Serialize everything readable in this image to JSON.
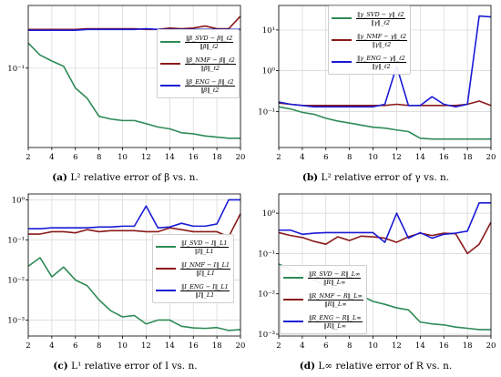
{
  "colors": {
    "svd": "#2e8b57",
    "nmf": "#8b1a1a",
    "eng": "#1a1ad6",
    "grid": "#d4d4d4"
  },
  "panels": [
    {
      "id": "a",
      "caption": {
        "tag": "(a)",
        "text": "L² relative error of β vs. n."
      },
      "legend": [
        {
          "num": "‖β_SVD − β‖_ℓ2",
          "den": "‖β‖_ℓ2",
          "color": "svd"
        },
        {
          "num": "‖β_NMF − β‖_ℓ2",
          "den": "‖β‖_ℓ2",
          "color": "nmf"
        },
        {
          "num": "‖β_ENG − β‖_ℓ2",
          "den": "‖β‖_ℓ2",
          "color": "eng"
        }
      ]
    },
    {
      "id": "b",
      "caption": {
        "tag": "(b)",
        "text": "L² relative error of γ vs. n."
      },
      "legend": [
        {
          "num": "‖γ_SVD − γ‖_ℓ2",
          "den": "‖γ‖_ℓ2",
          "color": "svd"
        },
        {
          "num": "‖γ_NMF − γ‖_ℓ2",
          "den": "‖γ‖_ℓ2",
          "color": "nmf"
        },
        {
          "num": "‖γ_ENG − γ‖_ℓ2",
          "den": "‖γ‖_ℓ2",
          "color": "eng"
        }
      ]
    },
    {
      "id": "c",
      "caption": {
        "tag": "(c)",
        "text": "L¹ relative error of I vs. n."
      },
      "legend": [
        {
          "num": "‖I_SVD − I‖_L1",
          "den": "‖I‖_L1",
          "color": "svd"
        },
        {
          "num": "‖I_NMF − I‖_L1",
          "den": "‖I‖_L1",
          "color": "nmf"
        },
        {
          "num": "‖I_ENG − I‖_L1",
          "den": "‖I‖_L1",
          "color": "eng"
        }
      ]
    },
    {
      "id": "d",
      "caption": {
        "tag": "(d)",
        "text": "L∞ relative error of R vs. n."
      },
      "legend": [
        {
          "num": "‖R_SVD − R‖_L∞",
          "den": "‖R‖_L∞",
          "color": "svd"
        },
        {
          "num": "‖R_NMF − R‖_L∞",
          "den": "‖R‖_L∞",
          "color": "nmf"
        },
        {
          "num": "‖R_ENG − R‖_L∞",
          "den": "‖R‖_L∞",
          "color": "eng"
        }
      ]
    }
  ],
  "chart_data": [
    {
      "type": "line",
      "panel": "a",
      "yscale": "log",
      "ylim": [
        0.013,
        0.5
      ],
      "xlim": [
        2,
        20
      ],
      "x": [
        2,
        3,
        4,
        5,
        6,
        7,
        8,
        9,
        10,
        11,
        12,
        13,
        14,
        15,
        16,
        17,
        18,
        19,
        20
      ],
      "xticks": [
        2,
        4,
        6,
        8,
        10,
        12,
        14,
        16,
        18,
        20
      ],
      "yticks": [
        {
          "value": 0.1,
          "label": "10⁻¹"
        }
      ],
      "grid": true,
      "legend_position": "right-center",
      "series": [
        {
          "key": "svd",
          "values": [
            0.19,
            0.14,
            0.12,
            0.105,
            0.06,
            0.046,
            0.029,
            0.027,
            0.026,
            0.026,
            0.024,
            0.022,
            0.021,
            0.019,
            0.0185,
            0.0175,
            0.017,
            0.0165,
            0.0165
          ]
        },
        {
          "key": "nmf",
          "values": [
            0.27,
            0.27,
            0.27,
            0.27,
            0.27,
            0.275,
            0.275,
            0.275,
            0.275,
            0.275,
            0.27,
            0.27,
            0.28,
            0.275,
            0.28,
            0.295,
            0.275,
            0.275,
            0.38
          ]
        },
        {
          "key": "eng",
          "values": [
            0.265,
            0.265,
            0.265,
            0.265,
            0.265,
            0.27,
            0.27,
            0.27,
            0.27,
            0.27,
            0.275,
            0.27,
            0.27,
            0.27,
            0.27,
            0.27,
            0.27,
            0.27,
            0.27
          ]
        }
      ]
    },
    {
      "type": "line",
      "panel": "b",
      "yscale": "log",
      "ylim": [
        0.013,
        40
      ],
      "xlim": [
        2,
        20
      ],
      "x": [
        2,
        3,
        4,
        5,
        6,
        7,
        8,
        9,
        10,
        11,
        12,
        13,
        14,
        15,
        16,
        17,
        18,
        19,
        20
      ],
      "xticks": [
        2,
        4,
        6,
        8,
        10,
        12,
        14,
        16,
        18,
        20
      ],
      "yticks": [
        {
          "value": 0.1,
          "label": "10⁻¹"
        },
        {
          "value": 1,
          "label": "10⁰"
        },
        {
          "value": 10,
          "label": "10¹"
        }
      ],
      "grid": true,
      "legend_position": "top-right",
      "series": [
        {
          "key": "svd",
          "values": [
            0.13,
            0.115,
            0.095,
            0.085,
            0.068,
            0.058,
            0.052,
            0.046,
            0.041,
            0.039,
            0.035,
            0.032,
            0.022,
            0.021,
            0.021,
            0.021,
            0.021,
            0.021,
            0.021
          ]
        },
        {
          "key": "nmf",
          "values": [
            0.16,
            0.15,
            0.14,
            0.14,
            0.14,
            0.14,
            0.14,
            0.14,
            0.14,
            0.14,
            0.15,
            0.14,
            0.14,
            0.14,
            0.14,
            0.14,
            0.15,
            0.18,
            0.14
          ]
        },
        {
          "key": "eng",
          "values": [
            0.17,
            0.15,
            0.14,
            0.13,
            0.13,
            0.13,
            0.13,
            0.13,
            0.13,
            0.15,
            1.3,
            0.14,
            0.14,
            0.23,
            0.15,
            0.13,
            0.15,
            22,
            21
          ]
        }
      ]
    },
    {
      "type": "line",
      "panel": "c",
      "yscale": "log",
      "ylim": [
        0.0004,
        1.4
      ],
      "xlim": [
        2,
        20
      ],
      "x": [
        2,
        3,
        4,
        5,
        6,
        7,
        8,
        9,
        10,
        11,
        12,
        13,
        14,
        15,
        16,
        17,
        18,
        19,
        20
      ],
      "xticks": [
        2,
        4,
        6,
        8,
        10,
        12,
        14,
        16,
        18,
        20
      ],
      "yticks": [
        {
          "value": 0.001,
          "label": "10⁻³"
        },
        {
          "value": 0.01,
          "label": "10⁻²"
        },
        {
          "value": 0.1,
          "label": "10⁻¹"
        },
        {
          "value": 1,
          "label": "10⁰"
        }
      ],
      "grid": true,
      "legend_position": "center-right",
      "series": [
        {
          "key": "svd",
          "values": [
            0.022,
            0.036,
            0.012,
            0.021,
            0.01,
            0.0072,
            0.0032,
            0.0017,
            0.0012,
            0.0013,
            0.0008,
            0.001,
            0.001,
            0.0007,
            0.00064,
            0.00062,
            0.00065,
            0.00055,
            0.00058
          ]
        },
        {
          "key": "nmf",
          "values": [
            0.14,
            0.14,
            0.16,
            0.16,
            0.15,
            0.18,
            0.16,
            0.17,
            0.17,
            0.17,
            0.16,
            0.16,
            0.2,
            0.18,
            0.16,
            0.16,
            0.16,
            0.12,
            0.45
          ]
        },
        {
          "key": "eng",
          "values": [
            0.19,
            0.19,
            0.2,
            0.2,
            0.2,
            0.2,
            0.21,
            0.21,
            0.22,
            0.22,
            0.7,
            0.2,
            0.21,
            0.26,
            0.22,
            0.22,
            0.25,
            1.0,
            1.0
          ]
        }
      ]
    },
    {
      "type": "line",
      "panel": "d",
      "yscale": "log",
      "ylim": [
        0.0009,
        3
      ],
      "xlim": [
        2,
        20
      ],
      "x": [
        2,
        3,
        4,
        5,
        6,
        7,
        8,
        9,
        10,
        11,
        12,
        13,
        14,
        15,
        16,
        17,
        18,
        19,
        20
      ],
      "xticks": [
        2,
        4,
        6,
        8,
        10,
        12,
        14,
        16,
        18,
        20
      ],
      "yticks": [
        {
          "value": 0.001,
          "label": "10⁻³"
        },
        {
          "value": 0.01,
          "label": "10⁻²"
        },
        {
          "value": 0.1,
          "label": "10⁻¹"
        },
        {
          "value": 1,
          "label": "10⁰"
        }
      ],
      "grid": true,
      "legend_position": "bottom-left",
      "series": [
        {
          "key": "svd",
          "values": [
            0.055,
            0.04,
            0.028,
            0.022,
            0.016,
            0.013,
            0.011,
            0.009,
            0.0065,
            0.0055,
            0.0045,
            0.004,
            0.002,
            0.0018,
            0.0017,
            0.0015,
            0.0014,
            0.0013,
            0.0013
          ]
        },
        {
          "key": "nmf",
          "values": [
            0.33,
            0.28,
            0.25,
            0.2,
            0.17,
            0.26,
            0.21,
            0.27,
            0.26,
            0.24,
            0.19,
            0.26,
            0.32,
            0.28,
            0.32,
            0.31,
            0.1,
            0.17,
            0.6
          ]
        },
        {
          "key": "eng",
          "values": [
            0.38,
            0.38,
            0.3,
            0.32,
            0.33,
            0.33,
            0.33,
            0.33,
            0.33,
            0.19,
            1.0,
            0.24,
            0.33,
            0.24,
            0.3,
            0.32,
            0.36,
            1.8,
            1.8
          ]
        }
      ]
    }
  ]
}
